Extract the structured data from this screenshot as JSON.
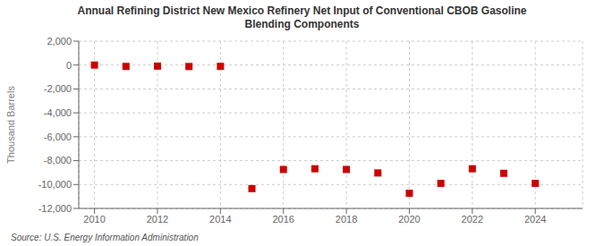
{
  "chart_data": {
    "type": "scatter",
    "title": "Annual Refining District New Mexico Refinery Net Input of Conventional CBOB Gasoline\nBlending Components",
    "y_label": "Thousand Barrels",
    "annotations": [
      "Source: U.S. Energy Information Administration"
    ],
    "x": [
      2010,
      2011,
      2012,
      2013,
      2014,
      2015,
      2016,
      2017,
      2018,
      2019,
      2020,
      2021,
      2022,
      2023,
      2024
    ],
    "values": [
      0,
      -117,
      -89,
      -121,
      -110,
      -10340,
      -8740,
      -8680,
      -8740,
      -9030,
      -10730,
      -9900,
      -8680,
      -9060,
      -9900
    ],
    "color": "#cc0000",
    "marker": "square",
    "xlim": [
      2009.5,
      2025.5
    ],
    "xticks": [
      2010,
      2012,
      2014,
      2016,
      2018,
      2020,
      2022,
      2024
    ],
    "ylim": [
      -12000,
      2000
    ],
    "yticks": [
      {
        "value": 2000,
        "label": "2,000"
      },
      0,
      {
        "value": -2000,
        "label": "-2,000"
      },
      {
        "value": -4000,
        "label": "-4,000"
      },
      {
        "value": -6000,
        "label": "-6,000"
      },
      {
        "value": -8000,
        "label": "-8,000"
      },
      {
        "value": -10000,
        "label": "-10,000"
      },
      {
        "value": -12000,
        "label": "-12,000"
      }
    ],
    "grid": true
  }
}
